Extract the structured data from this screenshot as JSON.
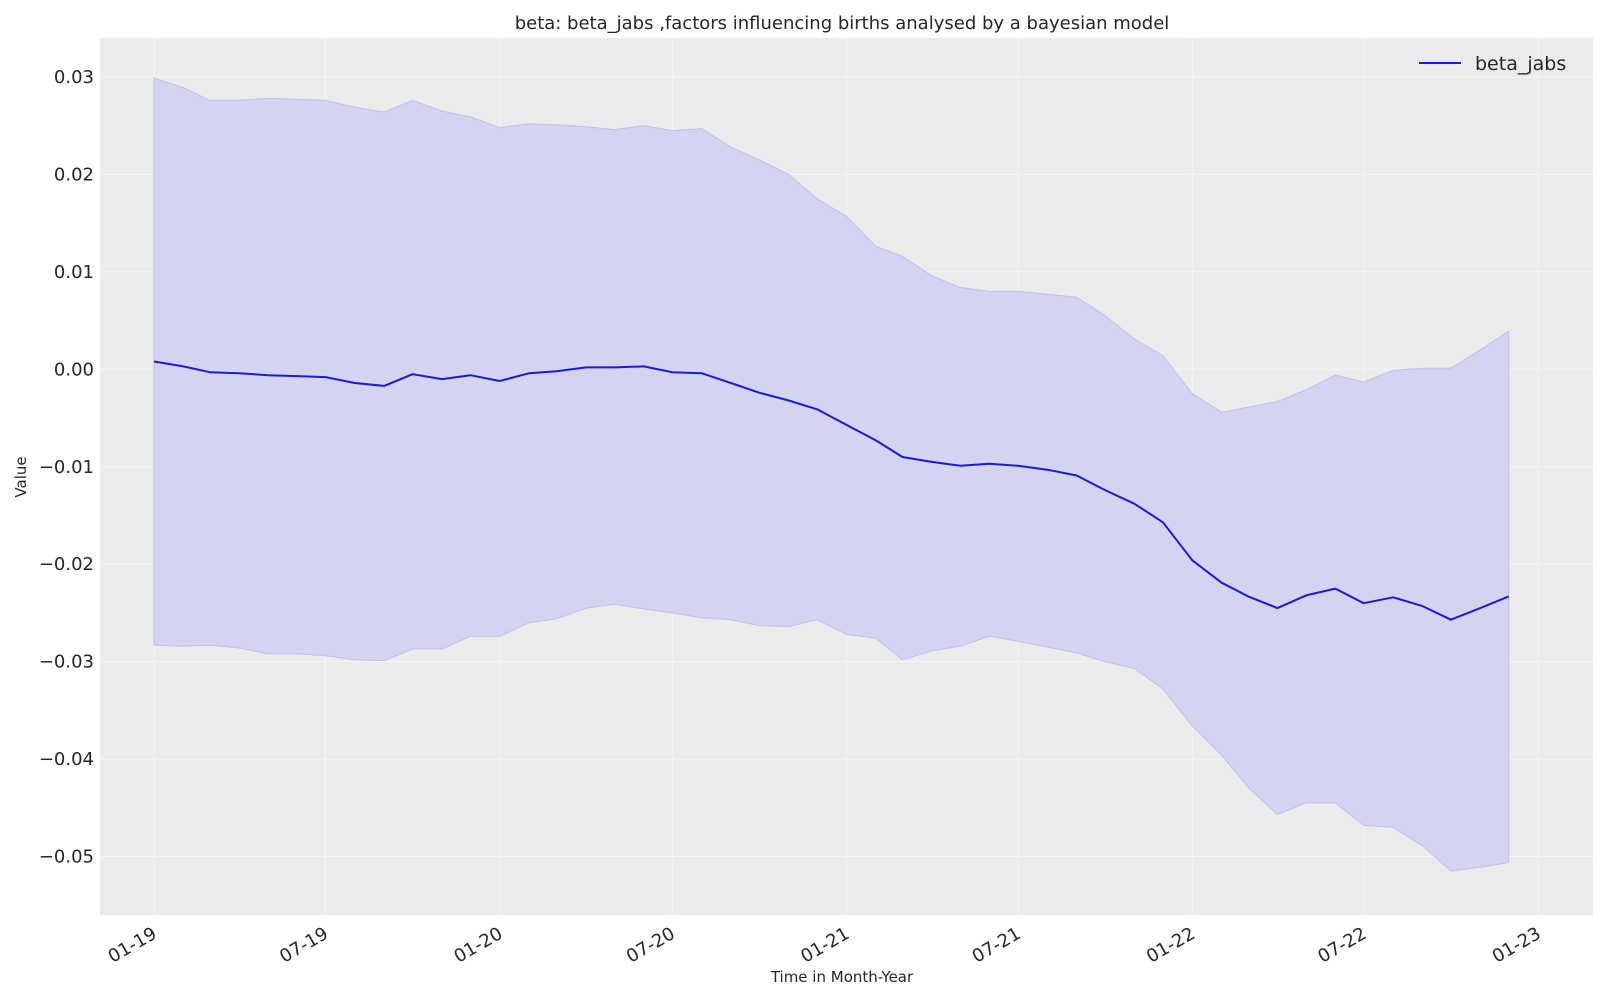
{
  "chart_data": {
    "type": "line",
    "title": "beta: beta_jabs ,factors influencing births analysed by a bayesian model",
    "xlabel": "Time in Month-Year",
    "ylabel": "Value",
    "ylim": [
      -0.056,
      0.034
    ],
    "xlim": [
      "2018-11-05",
      "2023-02-28"
    ],
    "grid": true,
    "legend_position": "top-right",
    "y_ticks": [
      0.03,
      0.02,
      0.01,
      0.0,
      -0.01,
      -0.02,
      -0.03,
      -0.04,
      -0.05
    ],
    "y_tick_labels": [
      "0.03",
      "0.02",
      "0.01",
      "0.00",
      "−0.01",
      "−0.02",
      "−0.03",
      "−0.04",
      "−0.05"
    ],
    "x_ticks": [
      "2019-01-01",
      "2019-07-01",
      "2020-01-01",
      "2020-07-01",
      "2021-01-01",
      "2021-07-01",
      "2022-01-01",
      "2022-07-01",
      "2023-01-01"
    ],
    "x_tick_labels": [
      "01-19",
      "07-19",
      "01-20",
      "07-20",
      "01-21",
      "07-21",
      "01-22",
      "07-22",
      "01-23"
    ],
    "colors": {
      "line": "#1a1adc",
      "band": "#d4d4f0",
      "band_edge": "#c0c0ec",
      "plot_bg": "#ebebeb",
      "grid": "#f5f5f5"
    },
    "x": [
      "2019-01-01",
      "2019-02-01",
      "2019-03-01",
      "2019-04-01",
      "2019-05-01",
      "2019-06-01",
      "2019-07-01",
      "2019-08-01",
      "2019-09-01",
      "2019-10-01",
      "2019-11-01",
      "2019-12-01",
      "2020-01-01",
      "2020-02-01",
      "2020-03-01",
      "2020-04-01",
      "2020-05-01",
      "2020-06-01",
      "2020-07-01",
      "2020-08-01",
      "2020-09-01",
      "2020-10-01",
      "2020-11-01",
      "2020-12-01",
      "2021-01-01",
      "2021-02-01",
      "2021-03-01",
      "2021-04-01",
      "2021-05-01",
      "2021-06-01",
      "2021-07-01",
      "2021-08-01",
      "2021-09-01",
      "2021-10-01",
      "2021-11-01",
      "2021-12-01",
      "2022-01-01",
      "2022-02-01",
      "2022-03-01",
      "2022-04-01",
      "2022-05-01",
      "2022-06-01",
      "2022-07-01",
      "2022-08-01",
      "2022-09-01",
      "2022-10-01",
      "2022-11-01",
      "2022-12-01"
    ],
    "series": [
      {
        "name": "beta_jabs",
        "values": [
          0.0008,
          0.0003,
          -0.0003,
          -0.0004,
          -0.0006,
          -0.0007,
          -0.0008,
          -0.0014,
          -0.0017,
          -0.0005,
          -0.001,
          -0.0006,
          -0.0012,
          -0.0004,
          -0.0002,
          0.0002,
          0.0002,
          0.0003,
          -0.0003,
          -0.0004,
          -0.0014,
          -0.0024,
          -0.0032,
          -0.0041,
          -0.0057,
          -0.0073,
          -0.009,
          -0.0095,
          -0.0099,
          -0.0097,
          -0.0099,
          -0.0103,
          -0.0109,
          -0.0124,
          -0.0138,
          -0.0157,
          -0.0196,
          -0.0219,
          -0.0233,
          -0.0245,
          -0.0232,
          -0.0225,
          -0.024,
          -0.0234,
          -0.0243,
          -0.0257,
          -0.0245,
          -0.0233
        ],
        "upper": [
          0.0299,
          0.0289,
          0.0276,
          0.0276,
          0.0278,
          0.0277,
          0.0276,
          0.0269,
          0.0264,
          0.0276,
          0.0265,
          0.0259,
          0.0248,
          0.0252,
          0.0251,
          0.0249,
          0.0246,
          0.025,
          0.0245,
          0.0247,
          0.0228,
          0.0215,
          0.02,
          0.0175,
          0.0157,
          0.0126,
          0.0116,
          0.0096,
          0.0084,
          0.008,
          0.008,
          0.0077,
          0.0074,
          0.0055,
          0.0031,
          0.0014,
          -0.0025,
          -0.0044,
          -0.0039,
          -0.0033,
          -0.0021,
          -0.0006,
          -0.0013,
          -0.0001,
          0.0001,
          0.0001,
          0.002,
          0.0039
        ],
        "lower": [
          -0.0283,
          -0.0284,
          -0.0283,
          -0.0286,
          -0.0292,
          -0.0292,
          -0.0294,
          -0.0298,
          -0.0299,
          -0.0287,
          -0.0287,
          -0.0274,
          -0.0274,
          -0.026,
          -0.0256,
          -0.0245,
          -0.0241,
          -0.0246,
          -0.025,
          -0.0255,
          -0.0257,
          -0.0263,
          -0.0264,
          -0.0257,
          -0.0272,
          -0.0276,
          -0.0298,
          -0.0289,
          -0.0284,
          -0.0274,
          -0.0279,
          -0.0285,
          -0.0291,
          -0.03,
          -0.0307,
          -0.0328,
          -0.0366,
          -0.0396,
          -0.0429,
          -0.0457,
          -0.0445,
          -0.0445,
          -0.0468,
          -0.047,
          -0.0489,
          -0.0515,
          -0.0511,
          -0.0506
        ]
      }
    ]
  }
}
